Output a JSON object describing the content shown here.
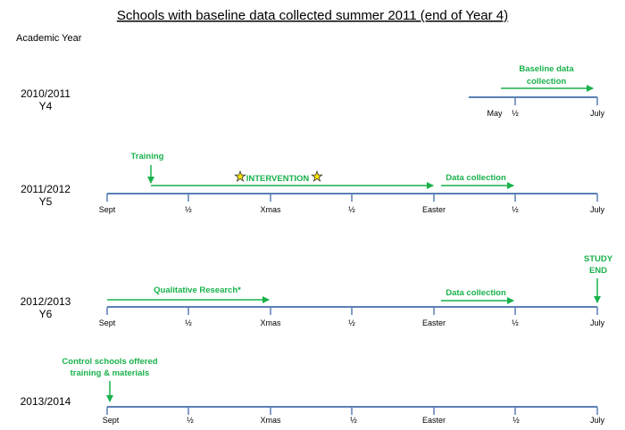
{
  "title": "Schools with baseline data collected summer 2011 (end of Year 4)",
  "academic_year_label": "Academic Year",
  "colors": {
    "timeline": "#5a7fb5",
    "green": "#18b24b",
    "star": "#ffe600"
  },
  "rows": [
    {
      "year": "2010/2011",
      "sub": "Y4",
      "ticks": [
        "May",
        "½",
        "July"
      ],
      "annotations": [
        {
          "lines": [
            "Baseline data",
            "collection"
          ]
        }
      ]
    },
    {
      "year": "2011/2012",
      "sub": "Y5",
      "ticks": [
        "Sept",
        "½",
        "Xmas",
        "½",
        "Easter",
        "½",
        "July"
      ],
      "annotations": [
        {
          "lines": [
            "Training"
          ]
        },
        {
          "lines": [
            "INTERVENTION"
          ]
        },
        {
          "lines": [
            "Data collection"
          ]
        }
      ]
    },
    {
      "year": "2012/2013",
      "sub": "Y6",
      "ticks": [
        "Sept",
        "½",
        "Xmas",
        "½",
        "Easter",
        "½",
        "July"
      ],
      "annotations": [
        {
          "lines": [
            "Qualitative Research*"
          ]
        },
        {
          "lines": [
            "Data collection"
          ]
        },
        {
          "lines": [
            "STUDY",
            "END"
          ]
        }
      ]
    },
    {
      "year": "2013/2014",
      "sub": "",
      "ticks": [
        "Sept",
        "½",
        "Xmas",
        "½",
        "Easter",
        "½",
        "July"
      ],
      "annotations": [
        {
          "lines": [
            "Control schools offered",
            "training & materials"
          ]
        }
      ]
    }
  ]
}
